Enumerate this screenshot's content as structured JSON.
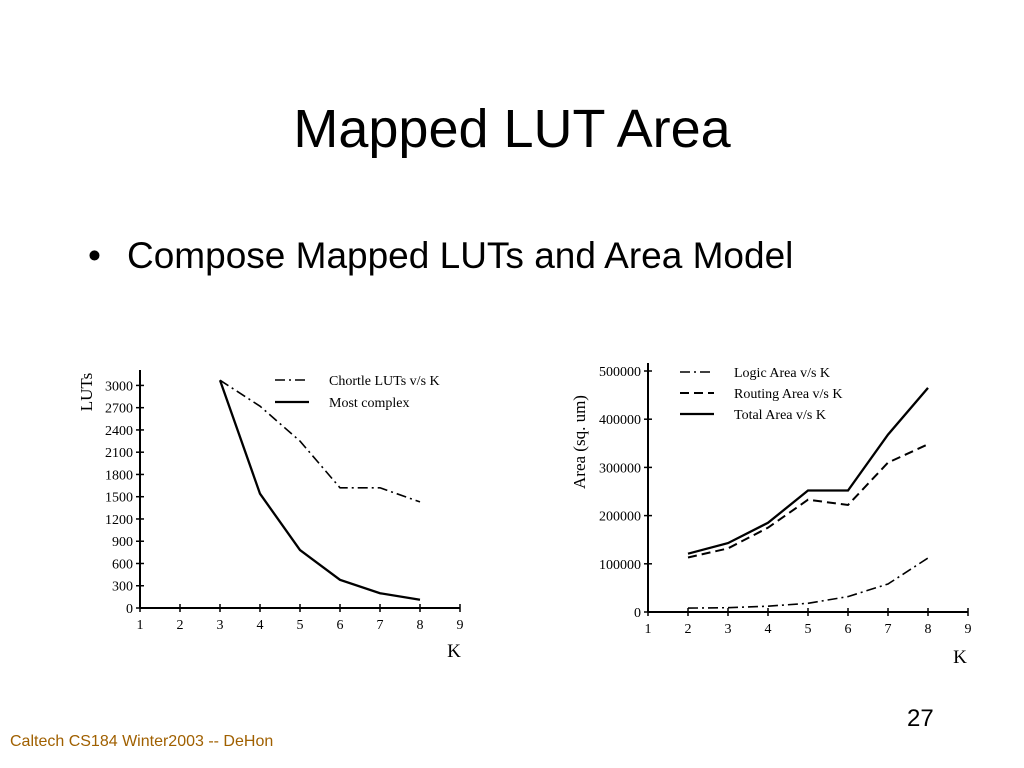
{
  "slide": {
    "title": "Mapped LUT Area",
    "bullets": [
      {
        "marker": "•",
        "text": "Compose Mapped LUTs and Area Model"
      }
    ],
    "footer": "Caltech CS184 Winter2003 -- DeHon",
    "page_number": "27"
  },
  "chart_data": [
    {
      "type": "line",
      "title": "",
      "xlabel": "K",
      "ylabel": "LUTs",
      "xlim": [
        1,
        9
      ],
      "ylim": [
        0,
        3100
      ],
      "x_ticks": [
        1,
        2,
        3,
        4,
        5,
        6,
        7,
        8,
        9
      ],
      "x_tick_labels": [
        "1",
        "2",
        "3",
        "4",
        "5",
        "6",
        "7",
        "8",
        "9"
      ],
      "y_ticks": [
        0,
        300,
        600,
        900,
        1200,
        1500,
        1800,
        2100,
        2400,
        2700,
        3000
      ],
      "y_tick_labels": [
        "0",
        "300",
        "600",
        "900",
        "1200",
        "1500",
        "1800",
        "2100",
        "2400",
        "2700",
        "3000"
      ],
      "grid": false,
      "legend_position": "top-right",
      "series": [
        {
          "name": "Chortle LUTs v/s K",
          "style": "dash-dot",
          "x": [
            3,
            4,
            5,
            6,
            7,
            8
          ],
          "y": [
            3070,
            2720,
            2250,
            1620,
            1620,
            1430
          ]
        },
        {
          "name": "Most complex",
          "style": "solid",
          "x": [
            3,
            4,
            5,
            6,
            7,
            8
          ],
          "y": [
            3070,
            1540,
            780,
            380,
            200,
            110
          ]
        }
      ]
    },
    {
      "type": "line",
      "title": "",
      "xlabel": "K",
      "ylabel": "Area (sq. um)",
      "xlim": [
        1,
        9
      ],
      "ylim": [
        0,
        500000
      ],
      "x_ticks": [
        1,
        2,
        3,
        4,
        5,
        6,
        7,
        8,
        9
      ],
      "x_tick_labels": [
        "1",
        "2",
        "3",
        "4",
        "5",
        "6",
        "7",
        "8",
        "9"
      ],
      "y_ticks": [
        0,
        100000,
        200000,
        300000,
        400000,
        500000
      ],
      "y_tick_labels": [
        "0",
        "100000",
        "200000",
        "300000",
        "400000",
        "500000"
      ],
      "grid": false,
      "legend_position": "top-right",
      "series": [
        {
          "name": "Logic Area v/s K",
          "style": "dash-dot",
          "x": [
            2,
            3,
            4,
            5,
            6,
            7,
            8
          ],
          "y": [
            8000,
            9000,
            12000,
            18000,
            32000,
            58000,
            112000
          ]
        },
        {
          "name": "Routing Area v/s K",
          "style": "dash",
          "x": [
            2,
            3,
            4,
            5,
            6,
            7,
            8
          ],
          "y": [
            113000,
            132000,
            175000,
            233000,
            222000,
            310000,
            348000
          ]
        },
        {
          "name": "Total Area v/s K",
          "style": "solid",
          "x": [
            2,
            3,
            4,
            5,
            6,
            7,
            8
          ],
          "y": [
            121000,
            143000,
            185000,
            252000,
            252000,
            368000,
            465000
          ]
        }
      ]
    }
  ]
}
